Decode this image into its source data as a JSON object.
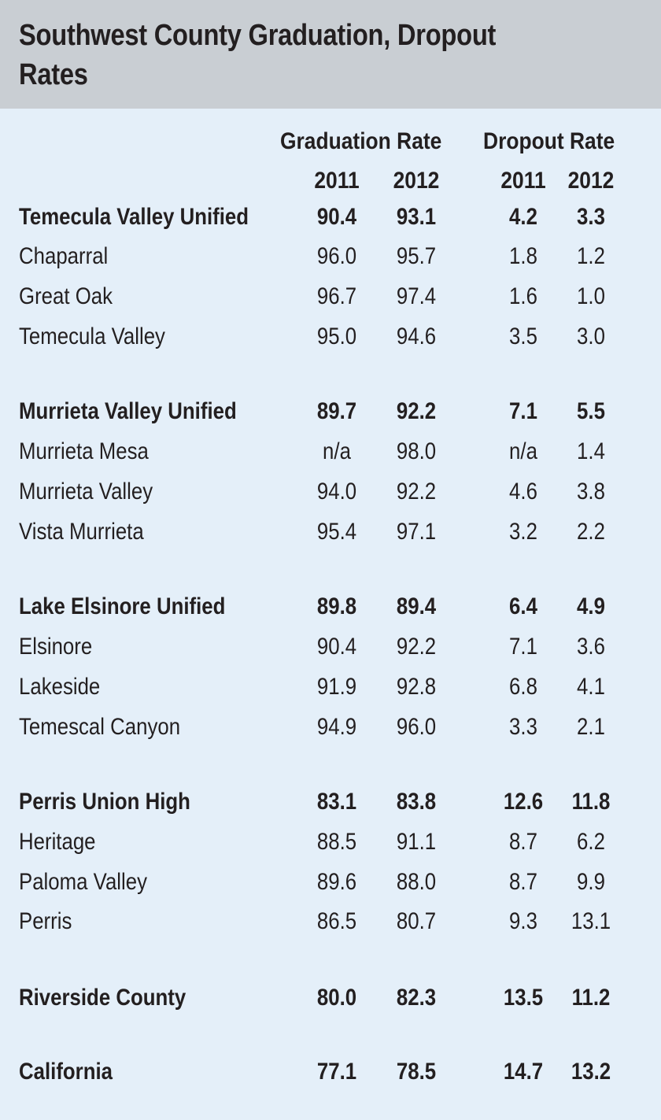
{
  "title": "Southwest County Graduation, Dropout Rates",
  "chart_data": {
    "type": "table",
    "title": "Southwest County Graduation, Dropout Rates",
    "column_groups": [
      "Graduation Rate",
      "Dropout Rate"
    ],
    "years": [
      "2011",
      "2012",
      "2011",
      "2012"
    ],
    "rows": [
      {
        "name": "Temecula Valley Unified",
        "bold": true,
        "values": [
          "90.4",
          "93.1",
          "4.2",
          "3.3"
        ]
      },
      {
        "name": "Chaparral",
        "bold": false,
        "values": [
          "96.0",
          "95.7",
          "1.8",
          "1.2"
        ]
      },
      {
        "name": "Great Oak",
        "bold": false,
        "values": [
          "96.7",
          "97.4",
          "1.6",
          "1.0"
        ]
      },
      {
        "name": "Temecula Valley",
        "bold": false,
        "values": [
          "95.0",
          "94.6",
          "3.5",
          "3.0"
        ]
      },
      {
        "name": "Murrieta Valley Unified",
        "bold": true,
        "values": [
          "89.7",
          "92.2",
          "7.1",
          "5.5"
        ]
      },
      {
        "name": "Murrieta Mesa",
        "bold": false,
        "values": [
          "n/a",
          "98.0",
          "n/a",
          "1.4"
        ]
      },
      {
        "name": "Murrieta Valley",
        "bold": false,
        "values": [
          "94.0",
          "92.2",
          "4.6",
          "3.8"
        ]
      },
      {
        "name": "Vista Murrieta",
        "bold": false,
        "values": [
          "95.4",
          "97.1",
          "3.2",
          "2.2"
        ]
      },
      {
        "name": "Lake Elsinore Unified",
        "bold": true,
        "values": [
          "89.8",
          "89.4",
          "6.4",
          "4.9"
        ]
      },
      {
        "name": "Elsinore",
        "bold": false,
        "values": [
          "90.4",
          "92.2",
          "7.1",
          "3.6"
        ]
      },
      {
        "name": "Lakeside",
        "bold": false,
        "values": [
          "91.9",
          "92.8",
          "6.8",
          "4.1"
        ]
      },
      {
        "name": "Temescal Canyon",
        "bold": false,
        "values": [
          "94.9",
          "96.0",
          "3.3",
          "2.1"
        ]
      },
      {
        "name": "Perris Union High",
        "bold": true,
        "values": [
          "83.1",
          "83.8",
          "12.6",
          "11.8"
        ]
      },
      {
        "name": "Heritage",
        "bold": false,
        "values": [
          "88.5",
          "91.1",
          "8.7",
          "6.2"
        ]
      },
      {
        "name": "Paloma Valley",
        "bold": false,
        "values": [
          "89.6",
          "88.0",
          "8.7",
          "9.9"
        ]
      },
      {
        "name": "Perris",
        "bold": false,
        "values": [
          "86.5",
          "80.7",
          "9.3",
          "13.1"
        ]
      },
      {
        "name": "Riverside County",
        "bold": true,
        "values": [
          "80.0",
          "82.3",
          "13.5",
          "11.2"
        ]
      },
      {
        "name": "California",
        "bold": true,
        "values": [
          "77.1",
          "78.5",
          "14.7",
          "13.2"
        ]
      }
    ]
  }
}
